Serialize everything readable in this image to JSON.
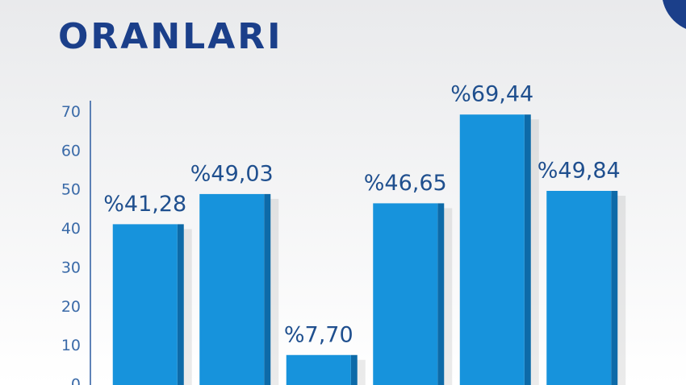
{
  "chart_data": {
    "type": "bar",
    "title": "ORANLARI",
    "categories": [
      null,
      null,
      null,
      null,
      null,
      null
    ],
    "values": [
      41.28,
      49.03,
      7.7,
      46.65,
      69.44,
      49.84
    ],
    "value_labels": [
      "%41,28",
      "%49,03",
      "%7,70",
      "%46,65",
      "%69,44",
      "%49,84"
    ],
    "color": "#1793dc",
    "ylim": [
      0,
      73
    ],
    "yticks": [
      0,
      10,
      20,
      30,
      40,
      50,
      60,
      70
    ]
  }
}
